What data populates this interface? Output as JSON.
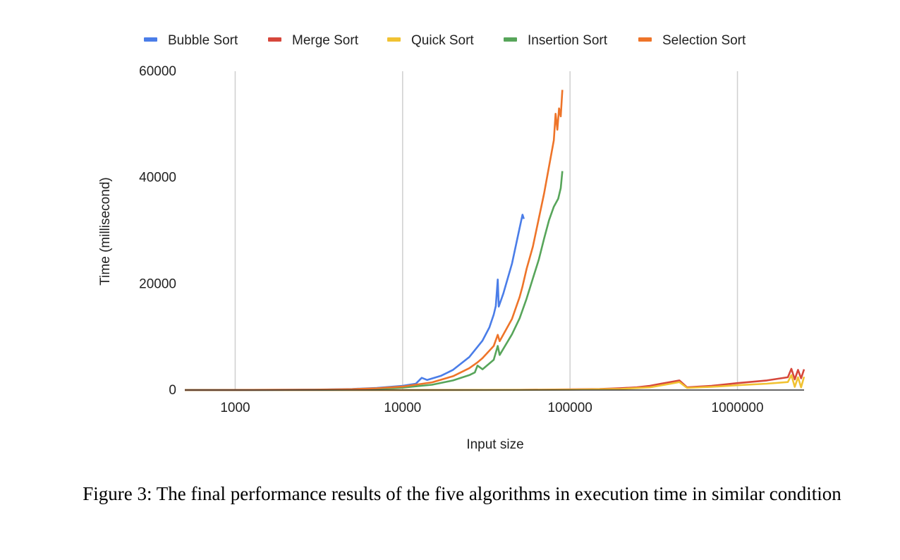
{
  "caption": "Figure 3: The final performance results of the five algorithms in execution time in similar condition",
  "chart_data": {
    "type": "line",
    "title": "",
    "xlabel": "Input size",
    "ylabel": "Time (millisecond)",
    "x_scale": "log",
    "xlim": [
      500,
      2500000
    ],
    "ylim": [
      0,
      60000
    ],
    "x_ticks": [
      1000,
      10000,
      100000,
      1000000
    ],
    "x_tick_labels": [
      "1000",
      "10000",
      "100000",
      "1000000"
    ],
    "y_ticks": [
      0,
      20000,
      40000,
      60000
    ],
    "y_tick_labels": [
      "0",
      "20000",
      "40000",
      "60000"
    ],
    "grid": "vertical",
    "legend_position": "top",
    "series": [
      {
        "name": "Bubble Sort",
        "color": "#4a7de8",
        "points": [
          [
            500,
            0
          ],
          [
            1000,
            10
          ],
          [
            2000,
            40
          ],
          [
            3000,
            80
          ],
          [
            5000,
            200
          ],
          [
            7000,
            400
          ],
          [
            10000,
            800
          ],
          [
            12000,
            1200
          ],
          [
            13000,
            2300
          ],
          [
            14000,
            1900
          ],
          [
            17000,
            2700
          ],
          [
            20000,
            3800
          ],
          [
            25000,
            6200
          ],
          [
            30000,
            9300
          ],
          [
            33000,
            11800
          ],
          [
            35000,
            14200
          ],
          [
            36000,
            15800
          ],
          [
            37000,
            20800
          ],
          [
            37500,
            15700
          ],
          [
            40000,
            18200
          ],
          [
            45000,
            23800
          ],
          [
            50000,
            30500
          ],
          [
            52000,
            33000
          ],
          [
            53000,
            32200
          ]
        ]
      },
      {
        "name": "Merge Sort",
        "color": "#d6473b",
        "points": [
          [
            500,
            0
          ],
          [
            10000,
            5
          ],
          [
            50000,
            40
          ],
          [
            100000,
            120
          ],
          [
            150000,
            200
          ],
          [
            200000,
            350
          ],
          [
            250000,
            500
          ],
          [
            300000,
            800
          ],
          [
            350000,
            1200
          ],
          [
            450000,
            1800
          ],
          [
            500000,
            500
          ],
          [
            700000,
            800
          ],
          [
            1000000,
            1300
          ],
          [
            1500000,
            1800
          ],
          [
            2000000,
            2400
          ],
          [
            2100000,
            4000
          ],
          [
            2200000,
            2000
          ],
          [
            2300000,
            3800
          ],
          [
            2400000,
            2200
          ],
          [
            2500000,
            3900
          ]
        ]
      },
      {
        "name": "Quick Sort",
        "color": "#f1c232",
        "points": [
          [
            500,
            0
          ],
          [
            10000,
            5
          ],
          [
            50000,
            30
          ],
          [
            100000,
            80
          ],
          [
            200000,
            200
          ],
          [
            300000,
            500
          ],
          [
            400000,
            1200
          ],
          [
            450000,
            1500
          ],
          [
            500000,
            400
          ],
          [
            700000,
            600
          ],
          [
            1000000,
            900
          ],
          [
            1500000,
            1200
          ],
          [
            2000000,
            1500
          ],
          [
            2100000,
            2800
          ],
          [
            2200000,
            600
          ],
          [
            2300000,
            2400
          ],
          [
            2400000,
            500
          ],
          [
            2500000,
            2500
          ]
        ]
      },
      {
        "name": "Insertion Sort",
        "color": "#57a55a",
        "points": [
          [
            500,
            0
          ],
          [
            1000,
            5
          ],
          [
            3000,
            40
          ],
          [
            5000,
            110
          ],
          [
            7000,
            220
          ],
          [
            10000,
            450
          ],
          [
            15000,
            1000
          ],
          [
            20000,
            1800
          ],
          [
            25000,
            2800
          ],
          [
            27000,
            3300
          ],
          [
            28000,
            4600
          ],
          [
            30000,
            3900
          ],
          [
            35000,
            5700
          ],
          [
            37000,
            8300
          ],
          [
            38000,
            6600
          ],
          [
            45000,
            10500
          ],
          [
            50000,
            13500
          ],
          [
            55000,
            17200
          ],
          [
            60000,
            21000
          ],
          [
            65000,
            24500
          ],
          [
            70000,
            28500
          ],
          [
            75000,
            32000
          ],
          [
            80000,
            34500
          ],
          [
            85000,
            36000
          ],
          [
            88000,
            38000
          ],
          [
            90000,
            41200
          ]
        ]
      },
      {
        "name": "Selection Sort",
        "color": "#ee7429",
        "points": [
          [
            500,
            0
          ],
          [
            1000,
            8
          ],
          [
            3000,
            60
          ],
          [
            5000,
            160
          ],
          [
            7000,
            330
          ],
          [
            10000,
            650
          ],
          [
            15000,
            1450
          ],
          [
            20000,
            2600
          ],
          [
            25000,
            4100
          ],
          [
            28000,
            5200
          ],
          [
            30000,
            6000
          ],
          [
            35000,
            8300
          ],
          [
            37000,
            10400
          ],
          [
            38000,
            9200
          ],
          [
            45000,
            13400
          ],
          [
            50000,
            17500
          ],
          [
            52000,
            19500
          ],
          [
            55000,
            22800
          ],
          [
            60000,
            27000
          ],
          [
            70000,
            37000
          ],
          [
            80000,
            47000
          ],
          [
            82000,
            52000
          ],
          [
            84000,
            49000
          ],
          [
            86000,
            53000
          ],
          [
            88000,
            51500
          ],
          [
            90000,
            56500
          ]
        ]
      }
    ]
  }
}
